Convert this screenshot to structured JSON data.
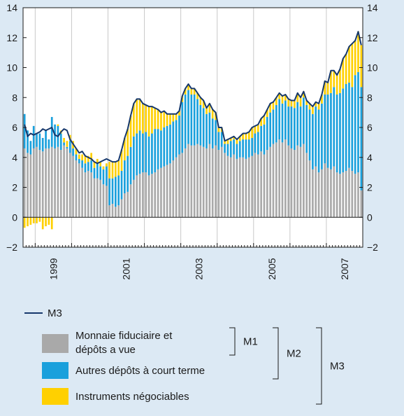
{
  "chart_data": {
    "type": "bar",
    "subtype": "stacked bar with line overlay",
    "x_ticks": [
      "1999",
      "2001",
      "2003",
      "2005",
      "2007"
    ],
    "ylim": [
      -2,
      14
    ],
    "y_ticks": [
      "14",
      "12",
      "10",
      "8",
      "6",
      "4",
      "2",
      "0",
      "−2"
    ],
    "grid": "vertical lines at year boundaries",
    "x_start": "1998-09",
    "x_end": "2007-12",
    "months": [
      "1998-09",
      "1998-10",
      "1998-11",
      "1998-12",
      "1999-01",
      "1999-02",
      "1999-03",
      "1999-04",
      "1999-05",
      "1999-06",
      "1999-07",
      "1999-08",
      "1999-09",
      "1999-10",
      "1999-11",
      "1999-12",
      "2000-01",
      "2000-02",
      "2000-03",
      "2000-04",
      "2000-05",
      "2000-06",
      "2000-07",
      "2000-08",
      "2000-09",
      "2000-10",
      "2000-11",
      "2000-12",
      "2001-01",
      "2001-02",
      "2001-03",
      "2001-04",
      "2001-05",
      "2001-06",
      "2001-07",
      "2001-08",
      "2001-09",
      "2001-10",
      "2001-11",
      "2001-12",
      "2002-01",
      "2002-02",
      "2002-03",
      "2002-04",
      "2002-05",
      "2002-06",
      "2002-07",
      "2002-08",
      "2002-09",
      "2002-10",
      "2002-11",
      "2002-12",
      "2003-01",
      "2003-02",
      "2003-03",
      "2003-04",
      "2003-05",
      "2003-06",
      "2003-07",
      "2003-08",
      "2003-09",
      "2003-10",
      "2003-11",
      "2003-12",
      "2004-01",
      "2004-02",
      "2004-03",
      "2004-04",
      "2004-05",
      "2004-06",
      "2004-07",
      "2004-08",
      "2004-09",
      "2004-10",
      "2004-11",
      "2004-12",
      "2005-01",
      "2005-02",
      "2005-03",
      "2005-04",
      "2005-05",
      "2005-06",
      "2005-07",
      "2005-08",
      "2005-09",
      "2005-10",
      "2005-11",
      "2005-12",
      "2006-01",
      "2006-02",
      "2006-03",
      "2006-04",
      "2006-05",
      "2006-06",
      "2006-07",
      "2006-08",
      "2006-09",
      "2006-10",
      "2006-11",
      "2006-12",
      "2007-01",
      "2007-02",
      "2007-03",
      "2007-04",
      "2007-05",
      "2007-06",
      "2007-07",
      "2007-08",
      "2007-09",
      "2007-10",
      "2007-11",
      "2007-12"
    ],
    "series": [
      {
        "name": "Monnaie fiduciaire et dépôts a vue",
        "color": "#a9a9a9",
        "values": [
          4.6,
          4.3,
          4.2,
          4.6,
          4.7,
          4.5,
          4.4,
          4.6,
          4.6,
          4.7,
          4.6,
          4.7,
          4.5,
          4.8,
          4.6,
          4.3,
          4.1,
          3.8,
          3.6,
          3.3,
          3.0,
          3.1,
          3.0,
          2.6,
          2.6,
          2.5,
          2.2,
          2.1,
          0.8,
          0.9,
          0.7,
          0.8,
          1.2,
          1.6,
          1.7,
          2.2,
          2.5,
          2.8,
          2.9,
          3.0,
          3.0,
          2.8,
          2.9,
          3.0,
          3.2,
          3.3,
          3.4,
          3.5,
          3.6,
          3.8,
          4.0,
          4.2,
          4.3,
          4.6,
          4.9,
          4.8,
          4.8,
          4.9,
          4.8,
          4.7,
          4.6,
          4.9,
          4.6,
          4.8,
          4.5,
          4.7,
          4.3,
          4.1,
          4.0,
          4.2,
          3.9,
          4.0,
          4.0,
          3.9,
          4.0,
          4.1,
          4.3,
          4.2,
          4.4,
          4.2,
          4.5,
          4.7,
          4.9,
          5.0,
          5.2,
          5.0,
          5.2,
          4.8,
          4.6,
          4.5,
          4.8,
          4.7,
          4.9,
          4.3,
          3.8,
          3.2,
          3.4,
          3.0,
          3.2,
          3.6,
          3.3,
          3.2,
          3.4,
          3.0,
          2.9,
          3.0,
          3.1,
          3.3,
          3.1,
          2.9,
          3.0,
          1.8
        ]
      },
      {
        "name": "Autres dépôts à court terme",
        "color": "#1aa0dc",
        "values": [
          2.3,
          1.5,
          0.9,
          1.5,
          0.9,
          1.1,
          0.9,
          1.2,
          0.6,
          2.0,
          1.6,
          1.4,
          1.1,
          0.2,
          0.1,
          0.8,
          0.5,
          0.4,
          0.3,
          0.5,
          0.6,
          0.6,
          0.8,
          0.7,
          1.0,
          0.9,
          1.0,
          1.3,
          1.8,
          1.7,
          2.0,
          2.0,
          1.9,
          2.2,
          2.4,
          2.5,
          2.9,
          2.8,
          2.9,
          2.6,
          2.7,
          2.6,
          2.7,
          2.9,
          2.7,
          2.5,
          2.6,
          2.6,
          2.6,
          2.6,
          2.5,
          2.6,
          3.4,
          3.6,
          3.6,
          3.4,
          3.4,
          3.0,
          2.7,
          2.6,
          2.3,
          2.1,
          2.0,
          1.7,
          1.2,
          1.0,
          0.6,
          0.8,
          1.1,
          1.0,
          1.0,
          1.1,
          1.2,
          1.3,
          1.2,
          1.2,
          1.3,
          1.5,
          1.7,
          2.0,
          2.2,
          2.3,
          2.3,
          2.5,
          2.7,
          2.6,
          2.6,
          2.6,
          2.8,
          2.8,
          2.9,
          2.7,
          3.1,
          3.2,
          3.4,
          3.7,
          4.0,
          4.2,
          4.4,
          4.6,
          4.9,
          5.1,
          5.3,
          5.2,
          5.4,
          5.6,
          5.8,
          5.7,
          5.6,
          6.6,
          6.7,
          6.9
        ]
      },
      {
        "name": "Instruments négociables",
        "color": "#ffd000",
        "values": [
          -0.7,
          -0.6,
          -0.5,
          -0.4,
          -0.4,
          -0.3,
          -0.8,
          -0.6,
          -0.5,
          -0.8,
          0.0,
          0.1,
          0.2,
          0.3,
          0.4,
          0.4,
          0.5,
          0.4,
          0.3,
          0.4,
          0.5,
          0.4,
          0.5,
          0.4,
          0.3,
          0.3,
          0.2,
          0.2,
          1.1,
          1.1,
          1.0,
          1.0,
          1.4,
          1.5,
          1.8,
          2.1,
          2.2,
          2.3,
          2.1,
          2.0,
          1.8,
          2.0,
          1.8,
          1.4,
          1.3,
          1.2,
          1.1,
          0.8,
          0.7,
          0.5,
          0.4,
          0.3,
          0.4,
          0.4,
          0.4,
          0.4,
          0.4,
          0.4,
          0.5,
          0.5,
          0.4,
          0.6,
          0.6,
          0.5,
          0.3,
          0.3,
          0.2,
          0.3,
          0.2,
          0.2,
          0.3,
          0.3,
          0.4,
          0.4,
          0.5,
          0.7,
          0.5,
          0.5,
          0.5,
          0.6,
          0.5,
          0.6,
          0.5,
          0.5,
          0.4,
          0.5,
          0.4,
          0.5,
          0.4,
          0.5,
          0.6,
          0.6,
          0.4,
          0.3,
          0.4,
          0.5,
          0.3,
          0.4,
          0.6,
          0.9,
          0.8,
          1.5,
          1.1,
          1.3,
          1.6,
          2.0,
          2.0,
          2.4,
          2.9,
          2.3,
          2.7,
          2.8
        ]
      }
    ],
    "line": {
      "name": "M3",
      "color": "#16386c",
      "values": [
        6.2,
        5.4,
        5.6,
        5.5,
        5.6,
        5.7,
        5.9,
        5.8,
        5.9,
        6.0,
        5.5,
        5.4,
        5.7,
        5.9,
        5.8,
        5.2,
        4.9,
        4.6,
        4.3,
        4.4,
        4.1,
        4.0,
        3.9,
        3.7,
        3.6,
        3.7,
        3.8,
        3.9,
        3.8,
        3.7,
        3.7,
        3.8,
        4.5,
        5.3,
        5.9,
        6.8,
        7.6,
        7.9,
        7.9,
        7.6,
        7.5,
        7.4,
        7.4,
        7.3,
        7.2,
        7.0,
        7.1,
        6.9,
        6.9,
        6.9,
        6.9,
        7.1,
        8.1,
        8.6,
        8.9,
        8.6,
        8.6,
        8.3,
        8.0,
        7.8,
        7.3,
        7.6,
        7.2,
        7.0,
        6.0,
        6.0,
        5.1,
        5.2,
        5.3,
        5.4,
        5.2,
        5.4,
        5.6,
        5.6,
        5.7,
        6.0,
        6.1,
        6.2,
        6.6,
        6.8,
        7.2,
        7.6,
        7.7,
        8.0,
        8.3,
        8.1,
        8.2,
        7.9,
        7.8,
        7.8,
        8.3,
        8.0,
        8.4,
        7.8,
        7.6,
        7.4,
        7.7,
        7.6,
        8.2,
        9.1,
        9.0,
        9.8,
        9.8,
        9.5,
        9.9,
        10.6,
        10.9,
        11.4,
        11.6,
        11.8,
        12.4,
        11.5
      ]
    }
  },
  "legend": {
    "line_label": "M3",
    "items": [
      {
        "label_lines": [
          "Monnaie fiduciaire et",
          "dépôts a vue"
        ],
        "color": "#a9a9a9"
      },
      {
        "label_lines": [
          "Autres dépôts à court terme"
        ],
        "color": "#1aa0dc"
      },
      {
        "label_lines": [
          "Instruments négociables"
        ],
        "color": "#ffd000"
      }
    ],
    "brackets": [
      "M1",
      "M2",
      "M3"
    ]
  },
  "colors": {
    "background": "#dce9f4",
    "plot_background": "#ffffff",
    "grid": "#c8c8c8",
    "axis": "#1a1a1a"
  }
}
